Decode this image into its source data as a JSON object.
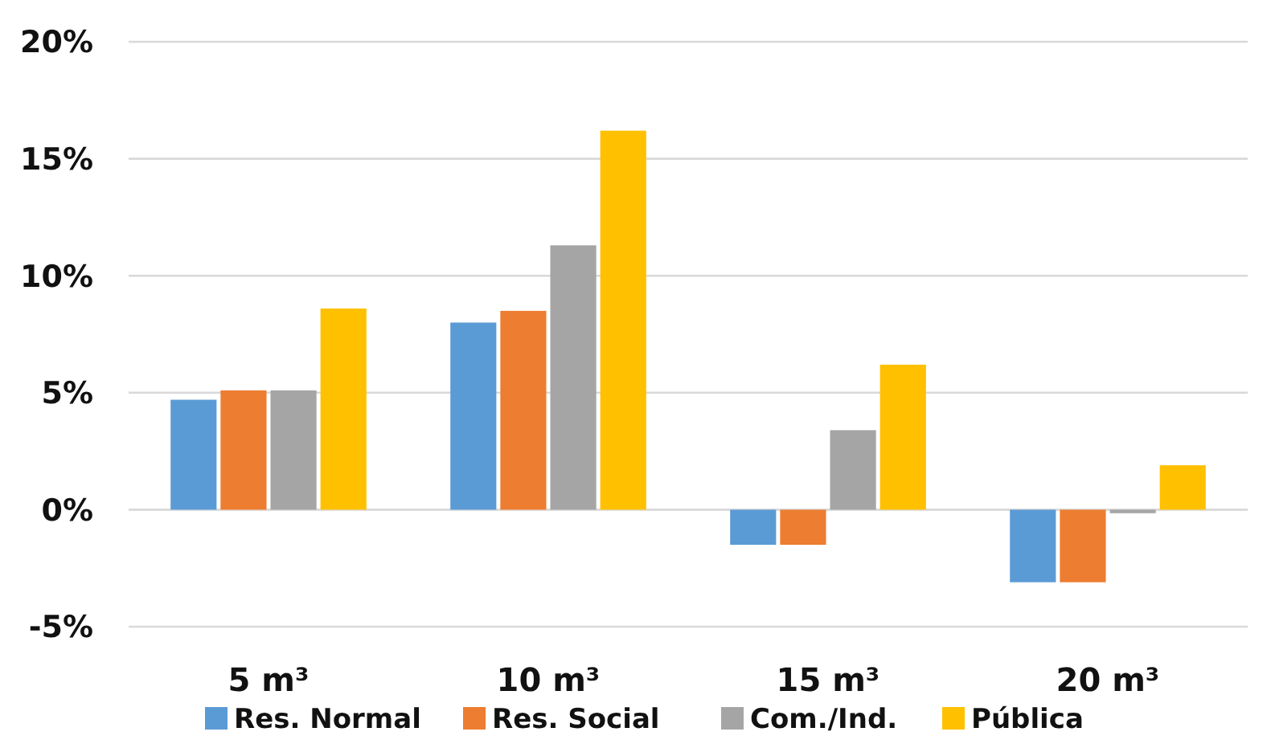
{
  "chart_data": {
    "type": "bar",
    "categories": [
      "5 m³",
      "10 m³",
      "15 m³",
      "20 m³"
    ],
    "series": [
      {
        "name": "Res. Normal",
        "color": "#5b9bd5",
        "values": [
          4.7,
          8.0,
          -1.5,
          -3.1
        ]
      },
      {
        "name": "Res. Social",
        "color": "#ed7d31",
        "values": [
          5.1,
          8.5,
          -1.5,
          -3.1
        ]
      },
      {
        "name": "Com./Ind.",
        "color": "#a5a5a5",
        "values": [
          5.1,
          11.3,
          3.4,
          -0.15
        ]
      },
      {
        "name": "Pública",
        "color": "#ffc000",
        "values": [
          8.6,
          16.2,
          6.2,
          1.9
        ]
      }
    ],
    "ylim": [
      -5,
      20
    ],
    "yticks": [
      {
        "value": -5,
        "label": "-5%"
      },
      {
        "value": 0,
        "label": "0%"
      },
      {
        "value": 5,
        "label": "5%"
      },
      {
        "value": 10,
        "label": "10%"
      },
      {
        "value": 15,
        "label": "15%"
      },
      {
        "value": 20,
        "label": "20%"
      }
    ],
    "grid": "y",
    "legend": "bottom"
  }
}
